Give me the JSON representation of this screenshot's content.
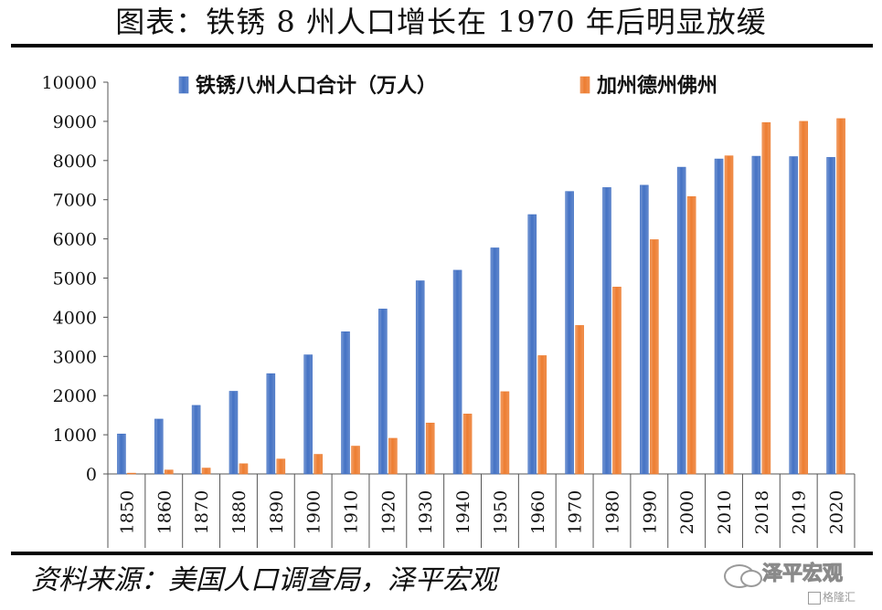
{
  "page": {
    "title": "图表：铁锈 8 州人口增长在 1970 年后明显放缓",
    "source": "资料来源：美国人口调查局，泽平宏观",
    "watermark_main": "泽平宏观",
    "watermark_sub": "格隆汇"
  },
  "colors": {
    "rust_belt": "#4472C4",
    "sun_belt": "#ED7D31"
  },
  "chart_data": {
    "type": "bar",
    "categories": [
      "1850",
      "1860",
      "1870",
      "1880",
      "1890",
      "1900",
      "1910",
      "1920",
      "1930",
      "1940",
      "1950",
      "1960",
      "1970",
      "1980",
      "1990",
      "2000",
      "2010",
      "2018",
      "2019",
      "2020"
    ],
    "series": [
      {
        "name": "铁锈八州人口合计（万人）",
        "values": [
          1020,
          1400,
          1750,
          2110,
          2560,
          3040,
          3630,
          4210,
          4930,
          5200,
          5770,
          6620,
          7210,
          7310,
          7370,
          7830,
          8040,
          8110,
          8100,
          8080
        ]
      },
      {
        "name": "加州德州佛州",
        "values": [
          20,
          100,
          150,
          260,
          380,
          500,
          710,
          910,
          1300,
          1530,
          2100,
          3020,
          3790,
          4770,
          5980,
          7080,
          8120,
          8970,
          9000,
          9070
        ]
      }
    ],
    "title": "",
    "xlabel": "",
    "ylabel": "",
    "ylim": [
      0,
      10000
    ],
    "yticks": [
      0,
      1000,
      2000,
      3000,
      4000,
      5000,
      6000,
      7000,
      8000,
      9000,
      10000
    ],
    "grid": false,
    "legend": "top"
  }
}
